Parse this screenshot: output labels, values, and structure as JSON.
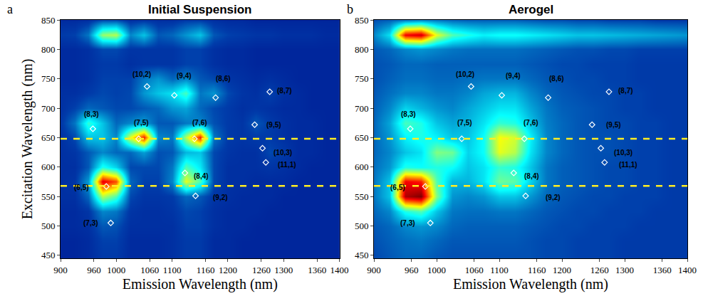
{
  "chart_data": [
    {
      "type": "heatmap",
      "panel": "a",
      "title": "Initial Suspension",
      "x_label": "Emission Wavelength (nm)",
      "y_label": "Excitation Wavelength (nm)",
      "xlim": [
        900,
        1400
      ],
      "xticks": [
        900,
        960,
        1000,
        1060,
        1100,
        1160,
        1200,
        1260,
        1300,
        1360,
        1400
      ],
      "ylim": [
        445,
        850
      ],
      "yticks": [
        450,
        500,
        550,
        600,
        650,
        700,
        750,
        800,
        850
      ],
      "zlim": [
        0,
        100
      ],
      "hlines": [
        648,
        568
      ],
      "x": [
        900,
        925,
        950,
        975,
        1000,
        1025,
        1050,
        1075,
        1100,
        1125,
        1150,
        1175,
        1200,
        1225,
        1250,
        1275,
        1300,
        1325,
        1350,
        1375,
        1400
      ],
      "y": [
        450,
        475,
        500,
        525,
        550,
        575,
        600,
        625,
        650,
        675,
        700,
        725,
        750,
        775,
        800,
        825,
        850
      ],
      "z": [
        [
          8,
          8,
          9,
          12,
          12,
          9,
          9,
          9,
          10,
          12,
          12,
          9,
          9,
          8,
          8,
          8,
          8,
          8,
          8,
          8,
          8
        ],
        [
          8,
          8,
          9,
          13,
          13,
          9,
          9,
          9,
          10,
          12,
          12,
          9,
          9,
          8,
          8,
          8,
          8,
          8,
          8,
          8,
          8
        ],
        [
          9,
          9,
          10,
          16,
          15,
          10,
          10,
          10,
          10,
          13,
          13,
          10,
          9,
          9,
          8,
          8,
          8,
          8,
          8,
          8,
          8
        ],
        [
          9,
          9,
          11,
          22,
          20,
          11,
          10,
          10,
          11,
          14,
          13,
          10,
          9,
          9,
          9,
          8,
          8,
          8,
          8,
          8,
          8
        ],
        [
          10,
          10,
          18,
          55,
          45,
          14,
          11,
          11,
          12,
          18,
          16,
          11,
          10,
          9,
          9,
          9,
          8,
          8,
          8,
          8,
          8
        ],
        [
          10,
          11,
          25,
          90,
          80,
          18,
          13,
          13,
          22,
          60,
          45,
          14,
          10,
          10,
          9,
          9,
          9,
          8,
          8,
          8,
          8
        ],
        [
          10,
          10,
          16,
          40,
          32,
          14,
          14,
          14,
          20,
          45,
          35,
          14,
          10,
          10,
          10,
          11,
          10,
          9,
          8,
          8,
          8
        ],
        [
          10,
          11,
          16,
          22,
          18,
          18,
          25,
          15,
          16,
          28,
          30,
          14,
          11,
          10,
          10,
          14,
          12,
          9,
          9,
          8,
          8
        ],
        [
          10,
          14,
          30,
          30,
          22,
          60,
          85,
          22,
          20,
          55,
          85,
          20,
          12,
          11,
          12,
          12,
          10,
          9,
          9,
          8,
          8
        ],
        [
          11,
          20,
          42,
          30,
          18,
          22,
          25,
          16,
          16,
          20,
          22,
          15,
          12,
          11,
          16,
          12,
          10,
          9,
          9,
          8,
          8
        ],
        [
          10,
          13,
          18,
          16,
          14,
          14,
          16,
          18,
          24,
          26,
          18,
          14,
          12,
          10,
          11,
          10,
          9,
          9,
          8,
          8,
          8
        ],
        [
          10,
          10,
          12,
          14,
          13,
          14,
          24,
          30,
          34,
          44,
          20,
          24,
          14,
          11,
          10,
          13,
          10,
          9,
          8,
          8,
          8
        ],
        [
          9,
          9,
          10,
          13,
          13,
          13,
          20,
          24,
          18,
          22,
          16,
          14,
          11,
          10,
          9,
          10,
          9,
          8,
          8,
          8,
          8
        ],
        [
          9,
          9,
          10,
          12,
          12,
          10,
          11,
          11,
          11,
          13,
          13,
          10,
          9,
          9,
          8,
          8,
          8,
          8,
          8,
          8,
          8
        ],
        [
          9,
          9,
          10,
          14,
          14,
          11,
          11,
          11,
          11,
          13,
          13,
          10,
          9,
          9,
          8,
          8,
          8,
          8,
          8,
          8,
          8
        ],
        [
          12,
          13,
          20,
          52,
          55,
          22,
          30,
          16,
          18,
          24,
          30,
          16,
          13,
          12,
          11,
          11,
          10,
          10,
          10,
          9,
          9
        ],
        [
          9,
          9,
          10,
          14,
          14,
          10,
          11,
          10,
          10,
          12,
          12,
          10,
          9,
          9,
          8,
          8,
          8,
          8,
          8,
          8,
          8
        ]
      ],
      "annotations": [
        {
          "text": "(10,2)",
          "x": 1055,
          "y": 737,
          "label_x": 1045,
          "label_y": 758
        },
        {
          "text": "(9,4)",
          "x": 1104,
          "y": 722,
          "label_x": 1122,
          "label_y": 755
        },
        {
          "text": "(8,6)",
          "x": 1178,
          "y": 718,
          "label_x": 1192,
          "label_y": 750
        },
        {
          "text": "(8,7)",
          "x": 1275,
          "y": 728,
          "label_x": 1302,
          "label_y": 730
        },
        {
          "text": "(8,3)",
          "x": 958,
          "y": 665,
          "label_x": 955,
          "label_y": 690
        },
        {
          "text": "(7,5)",
          "x": 1040,
          "y": 648,
          "label_x": 1045,
          "label_y": 675
        },
        {
          "text": "(7,6)",
          "x": 1140,
          "y": 648,
          "label_x": 1150,
          "label_y": 675
        },
        {
          "text": "(9,5)",
          "x": 1248,
          "y": 672,
          "label_x": 1282,
          "label_y": 672
        },
        {
          "text": "(10,3)",
          "x": 1262,
          "y": 632,
          "label_x": 1298,
          "label_y": 624
        },
        {
          "text": "(11,1)",
          "x": 1268,
          "y": 608,
          "label_x": 1306,
          "label_y": 604
        },
        {
          "text": "(8,4)",
          "x": 1123,
          "y": 590,
          "label_x": 1152,
          "label_y": 585
        },
        {
          "text": "(9,2)",
          "x": 1142,
          "y": 551,
          "label_x": 1186,
          "label_y": 548
        },
        {
          "text": "(6,5)",
          "x": 982,
          "y": 567,
          "label_x": 938,
          "label_y": 565
        },
        {
          "text": "(7,3)",
          "x": 990,
          "y": 505,
          "label_x": 954,
          "label_y": 505
        }
      ]
    },
    {
      "type": "heatmap",
      "panel": "b",
      "title": "Aerogel",
      "x_label": "Emission Wavelength (nm)",
      "xlim": [
        900,
        1400
      ],
      "xticks": [
        900,
        960,
        1000,
        1060,
        1100,
        1160,
        1200,
        1260,
        1300,
        1360,
        1400
      ],
      "ylim": [
        445,
        850
      ],
      "yticks": [
        450,
        500,
        550,
        600,
        650,
        700,
        750,
        800,
        850
      ],
      "zlim": [
        0,
        100
      ],
      "hlines": [
        648,
        568
      ],
      "x": [
        900,
        925,
        950,
        975,
        1000,
        1025,
        1050,
        1075,
        1100,
        1125,
        1150,
        1175,
        1200,
        1225,
        1250,
        1275,
        1300,
        1325,
        1350,
        1375,
        1400
      ],
      "y": [
        450,
        475,
        500,
        525,
        550,
        575,
        600,
        625,
        650,
        675,
        700,
        725,
        750,
        775,
        800,
        825,
        850
      ],
      "z": [
        [
          14,
          16,
          18,
          18,
          16,
          15,
          15,
          15,
          15,
          15,
          15,
          14,
          14,
          13,
          13,
          13,
          12,
          12,
          12,
          12,
          12
        ],
        [
          15,
          17,
          19,
          20,
          18,
          16,
          16,
          16,
          16,
          16,
          15,
          14,
          14,
          13,
          13,
          13,
          12,
          12,
          12,
          12,
          12
        ],
        [
          16,
          18,
          22,
          24,
          22,
          18,
          17,
          17,
          17,
          17,
          16,
          15,
          14,
          14,
          13,
          13,
          13,
          12,
          12,
          12,
          12
        ],
        [
          18,
          22,
          40,
          45,
          30,
          20,
          19,
          19,
          20,
          20,
          18,
          16,
          15,
          14,
          14,
          13,
          13,
          13,
          12,
          12,
          12
        ],
        [
          20,
          30,
          95,
          100,
          50,
          24,
          22,
          24,
          30,
          30,
          24,
          18,
          16,
          15,
          14,
          14,
          13,
          13,
          13,
          12,
          12
        ],
        [
          20,
          30,
          88,
          85,
          45,
          28,
          28,
          34,
          48,
          46,
          32,
          20,
          17,
          16,
          15,
          14,
          14,
          13,
          13,
          12,
          12
        ],
        [
          19,
          24,
          40,
          38,
          40,
          38,
          30,
          34,
          42,
          40,
          30,
          20,
          17,
          16,
          15,
          14,
          14,
          13,
          13,
          12,
          12
        ],
        [
          18,
          22,
          30,
          34,
          50,
          48,
          32,
          38,
          60,
          55,
          34,
          22,
          18,
          16,
          15,
          15,
          14,
          13,
          13,
          12,
          12
        ],
        [
          18,
          24,
          36,
          40,
          36,
          30,
          30,
          38,
          62,
          58,
          36,
          22,
          18,
          16,
          15,
          15,
          14,
          13,
          13,
          12,
          12
        ],
        [
          18,
          26,
          44,
          40,
          30,
          26,
          28,
          34,
          42,
          40,
          30,
          21,
          18,
          16,
          15,
          14,
          14,
          13,
          13,
          12,
          12
        ],
        [
          17,
          22,
          32,
          28,
          24,
          22,
          26,
          30,
          34,
          34,
          26,
          20,
          17,
          16,
          15,
          14,
          13,
          13,
          12,
          12,
          12
        ],
        [
          16,
          19,
          22,
          22,
          20,
          20,
          22,
          26,
          28,
          28,
          22,
          18,
          16,
          15,
          14,
          14,
          13,
          13,
          12,
          12,
          12
        ],
        [
          15,
          17,
          19,
          19,
          18,
          18,
          19,
          20,
          20,
          20,
          18,
          16,
          15,
          14,
          14,
          13,
          13,
          12,
          12,
          12,
          12
        ],
        [
          15,
          16,
          18,
          18,
          17,
          17,
          17,
          17,
          17,
          17,
          16,
          15,
          14,
          14,
          13,
          13,
          13,
          12,
          12,
          12,
          12
        ],
        [
          16,
          18,
          22,
          24,
          22,
          20,
          19,
          19,
          19,
          19,
          18,
          17,
          16,
          15,
          15,
          14,
          14,
          13,
          13,
          13,
          13
        ],
        [
          22,
          34,
          88,
          92,
          60,
          45,
          40,
          36,
          38,
          38,
          36,
          34,
          32,
          30,
          30,
          29,
          28,
          27,
          26,
          25,
          24
        ],
        [
          15,
          17,
          20,
          22,
          20,
          18,
          17,
          17,
          17,
          17,
          16,
          15,
          15,
          14,
          14,
          13,
          13,
          13,
          12,
          12,
          12
        ]
      ],
      "annotations": [
        {
          "text": "(10,2)",
          "x": 1055,
          "y": 737,
          "label_x": 1045,
          "label_y": 758
        },
        {
          "text": "(9,4)",
          "x": 1104,
          "y": 722,
          "label_x": 1122,
          "label_y": 755
        },
        {
          "text": "(8,6)",
          "x": 1178,
          "y": 718,
          "label_x": 1192,
          "label_y": 750
        },
        {
          "text": "(8,7)",
          "x": 1275,
          "y": 728,
          "label_x": 1302,
          "label_y": 730
        },
        {
          "text": "(8,3)",
          "x": 958,
          "y": 665,
          "label_x": 955,
          "label_y": 690
        },
        {
          "text": "(7,5)",
          "x": 1040,
          "y": 648,
          "label_x": 1045,
          "label_y": 675
        },
        {
          "text": "(7,6)",
          "x": 1140,
          "y": 648,
          "label_x": 1150,
          "label_y": 675
        },
        {
          "text": "(9,5)",
          "x": 1248,
          "y": 672,
          "label_x": 1282,
          "label_y": 672
        },
        {
          "text": "(10,3)",
          "x": 1262,
          "y": 632,
          "label_x": 1298,
          "label_y": 624
        },
        {
          "text": "(11,1)",
          "x": 1268,
          "y": 608,
          "label_x": 1306,
          "label_y": 604
        },
        {
          "text": "(8,4)",
          "x": 1123,
          "y": 590,
          "label_x": 1152,
          "label_y": 585
        },
        {
          "text": "(9,2)",
          "x": 1142,
          "y": 551,
          "label_x": 1186,
          "label_y": 548
        },
        {
          "text": "(6,5)",
          "x": 982,
          "y": 567,
          "label_x": 938,
          "label_y": 565
        },
        {
          "text": "(7,3)",
          "x": 990,
          "y": 505,
          "label_x": 954,
          "label_y": 505
        }
      ]
    }
  ]
}
